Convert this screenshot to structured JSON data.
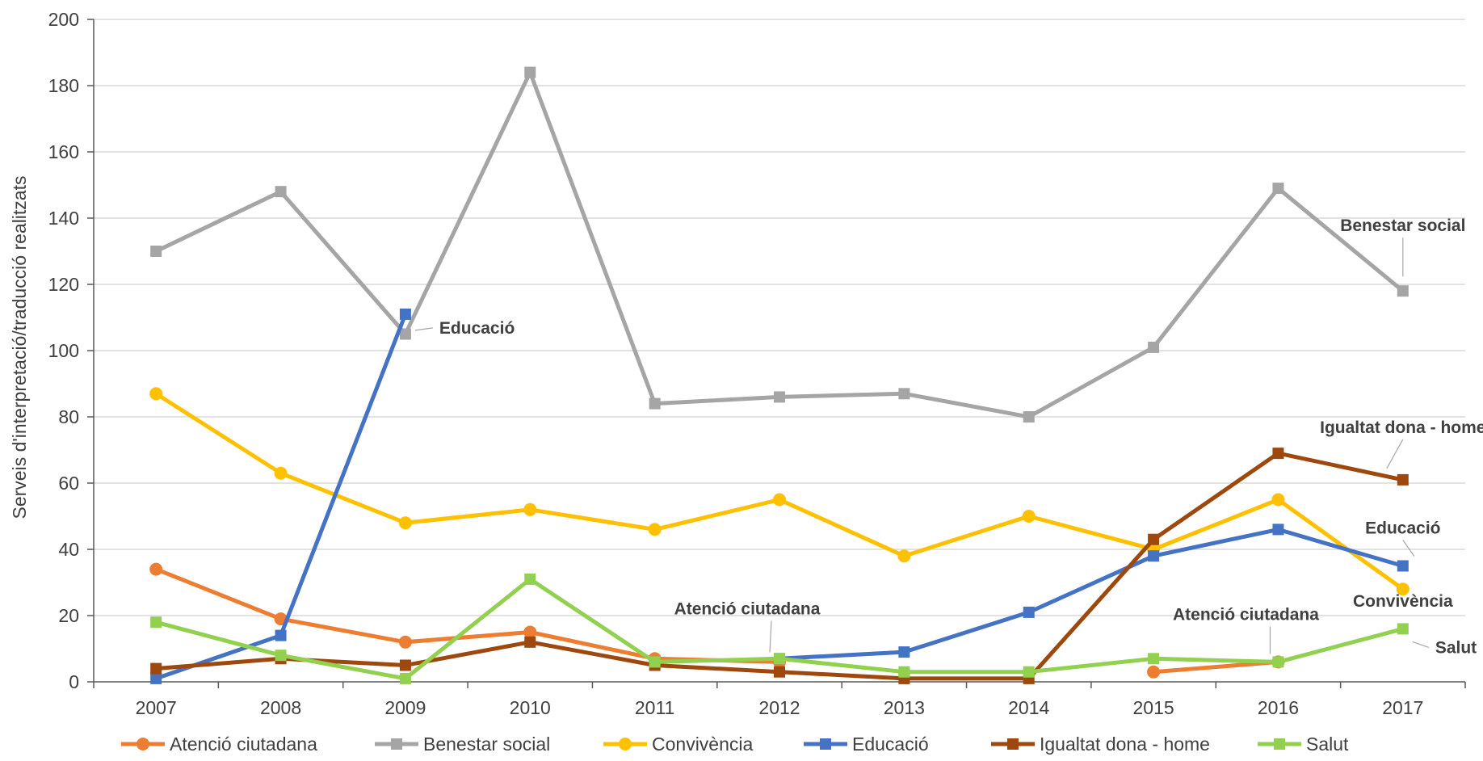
{
  "chart_data": {
    "type": "line",
    "title": "",
    "xlabel": "",
    "ylabel": "Serveis d'interpretació/traducció realitzats",
    "ylim": [
      0,
      200
    ],
    "ytick_step": 20,
    "y_ticks": [
      "0",
      "20",
      "40",
      "60",
      "80",
      "100",
      "120",
      "140",
      "160",
      "180",
      "200"
    ],
    "grid": "horizontal",
    "legend_position": "bottom",
    "x": [
      "2007",
      "2008",
      "2009",
      "2010",
      "2011",
      "2012",
      "2013",
      "2014",
      "2015",
      "2016",
      "2017"
    ],
    "series": [
      {
        "name": "Atenció ciutadana",
        "color": "#ED7D31",
        "marker": "circle",
        "values": [
          34,
          19,
          12,
          15,
          7,
          6,
          null,
          null,
          3,
          6,
          null
        ]
      },
      {
        "name": "Benestar social",
        "color": "#A5A5A5",
        "marker": "square",
        "values": [
          130,
          148,
          105,
          184,
          84,
          86,
          87,
          80,
          101,
          149,
          118
        ]
      },
      {
        "name": "Convivència",
        "color": "#FFC000",
        "marker": "circle",
        "values": [
          87,
          63,
          48,
          52,
          46,
          55,
          38,
          50,
          40,
          55,
          28
        ]
      },
      {
        "name": "Educació",
        "color": "#4472C4",
        "marker": "square",
        "values": [
          1,
          14,
          111,
          null,
          null,
          7,
          9,
          21,
          38,
          46,
          35
        ]
      },
      {
        "name": "Igualtat dona - home",
        "color": "#9E480E",
        "marker": "square",
        "values": [
          4,
          7,
          5,
          12,
          5,
          3,
          1,
          1,
          43,
          69,
          61
        ]
      },
      {
        "name": "Salut",
        "color": "#92D050",
        "marker": "square",
        "values": [
          18,
          8,
          1,
          31,
          6,
          7,
          3,
          3,
          7,
          6,
          16
        ]
      }
    ],
    "annotations": [
      {
        "text": "Educació",
        "series": "Educació",
        "x": "2009"
      },
      {
        "text": "Benestar social",
        "series": "Benestar social",
        "x": "2017"
      },
      {
        "text": "Igualtat dona - home",
        "series": "Igualtat dona - home",
        "x": "2017"
      },
      {
        "text": "Educació",
        "series": "Educació",
        "x": "2017"
      },
      {
        "text": "Convivència",
        "series": "Convivència",
        "x": "2017"
      },
      {
        "text": "Atenció ciutadana",
        "series": "Atenció ciutadana",
        "x": "2012"
      },
      {
        "text": "Atenció ciutadana",
        "series": "Atenció ciutadana",
        "x": "2016"
      },
      {
        "text": "Salut",
        "series": "Salut",
        "x": "2017"
      }
    ]
  }
}
